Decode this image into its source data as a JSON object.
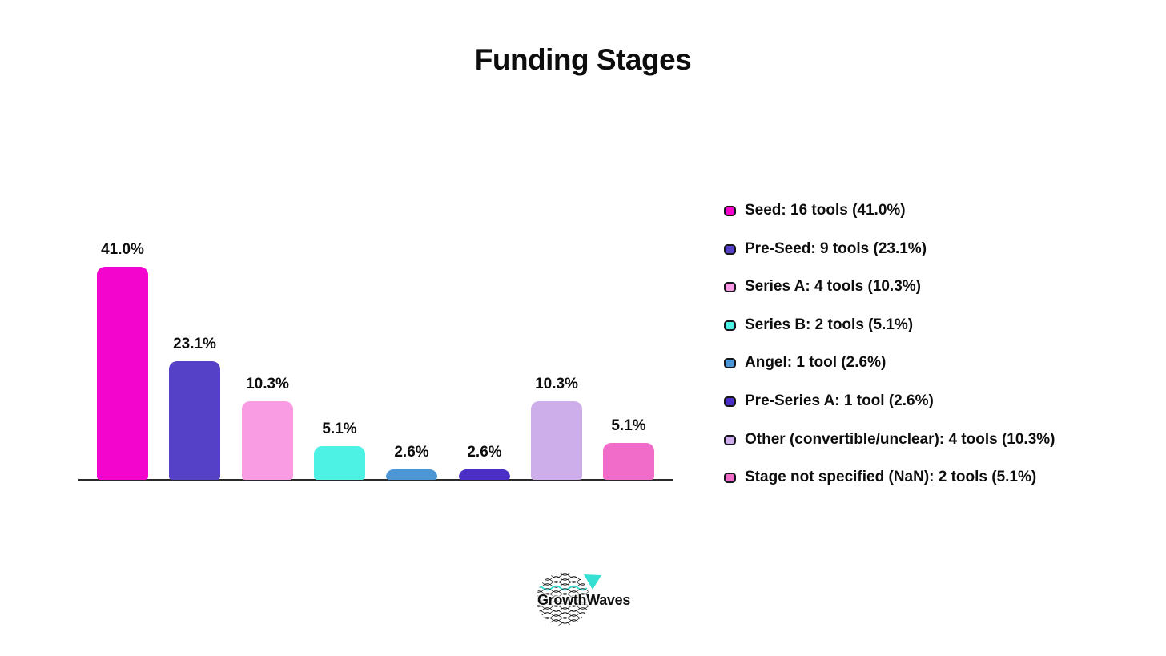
{
  "title": "Funding Stages",
  "chart_data": {
    "type": "bar",
    "title": "Funding Stages",
    "categories": [
      "Seed",
      "Pre-Seed",
      "Series A",
      "Series B",
      "Angel",
      "Pre-Series A",
      "Other (convertible/unclear)",
      "Stage not specified (NaN)"
    ],
    "values": [
      41.0,
      23.1,
      10.3,
      5.1,
      2.6,
      2.6,
      10.3,
      5.1
    ],
    "tool_counts": [
      16,
      9,
      4,
      2,
      1,
      1,
      4,
      2
    ],
    "bar_value_labels": [
      "41.0%",
      "23.1%",
      "10.3%",
      "5.1%",
      "2.6%",
      "2.6%",
      "10.3%",
      "5.1%"
    ],
    "bar_colors": [
      "#f405ce",
      "#5540c8",
      "#fa9ce4",
      "#4ef2e4",
      "#4d96d5",
      "#4a2ec6",
      "#cdaeea",
      "#f16bc8"
    ],
    "xlabel": "",
    "ylabel": "",
    "grid": false,
    "y_axis_visible": false,
    "x_axis_line": true,
    "legend_position": "right",
    "legend_labels": [
      "Seed: 16 tools (41.0%)",
      "Pre-Seed: 9 tools (23.1%)",
      "Series A: 4 tools (10.3%)",
      "Series B: 2 tools (5.1%)",
      "Angel: 1 tool (2.6%)",
      "Pre-Series A: 1 tool (2.6%)",
      "Other (convertible/unclear): 4 tools (10.3%)",
      "Stage not specified (NaN): 2 tools (5.1%)"
    ]
  },
  "footer": {
    "logo_text": "GrowthWaves",
    "logo_accent_color": "#35e0d2"
  },
  "colors": {
    "background": "#ffffff",
    "text": "#0d0d0d",
    "axis_line": "#2a2a2a",
    "legend_marker_border": "#16161d"
  }
}
